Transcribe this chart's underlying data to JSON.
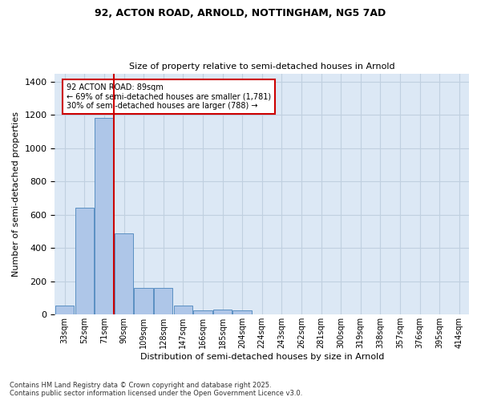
{
  "title_line1": "92, ACTON ROAD, ARNOLD, NOTTINGHAM, NG5 7AD",
  "title_line2": "Size of property relative to semi-detached houses in Arnold",
  "xlabel": "Distribution of semi-detached houses by size in Arnold",
  "ylabel": "Number of semi-detached properties",
  "categories": [
    "33sqm",
    "52sqm",
    "71sqm",
    "90sqm",
    "109sqm",
    "128sqm",
    "147sqm",
    "166sqm",
    "185sqm",
    "204sqm",
    "224sqm",
    "243sqm",
    "262sqm",
    "281sqm",
    "300sqm",
    "319sqm",
    "338sqm",
    "357sqm",
    "376sqm",
    "395sqm",
    "414sqm"
  ],
  "values": [
    55,
    645,
    1185,
    490,
    160,
    160,
    55,
    25,
    30,
    25,
    0,
    0,
    0,
    0,
    0,
    0,
    0,
    0,
    0,
    0,
    0
  ],
  "bar_color": "#aec6e8",
  "bar_edge_color": "#5a8fc2",
  "red_line_index": 2.5,
  "annotation_text": "92 ACTON ROAD: 89sqm\n← 69% of semi-detached houses are smaller (1,781)\n30% of semi-detached houses are larger (788) →",
  "annotation_box_color": "#ffffff",
  "annotation_box_edge": "#cc0000",
  "red_line_color": "#cc0000",
  "ylim": [
    0,
    1450
  ],
  "yticks": [
    0,
    200,
    400,
    600,
    800,
    1000,
    1200,
    1400
  ],
  "footer": "Contains HM Land Registry data © Crown copyright and database right 2025.\nContains public sector information licensed under the Open Government Licence v3.0.",
  "background_color": "#ffffff",
  "plot_bg_color": "#dce8f5",
  "grid_color": "#c0d0e0"
}
